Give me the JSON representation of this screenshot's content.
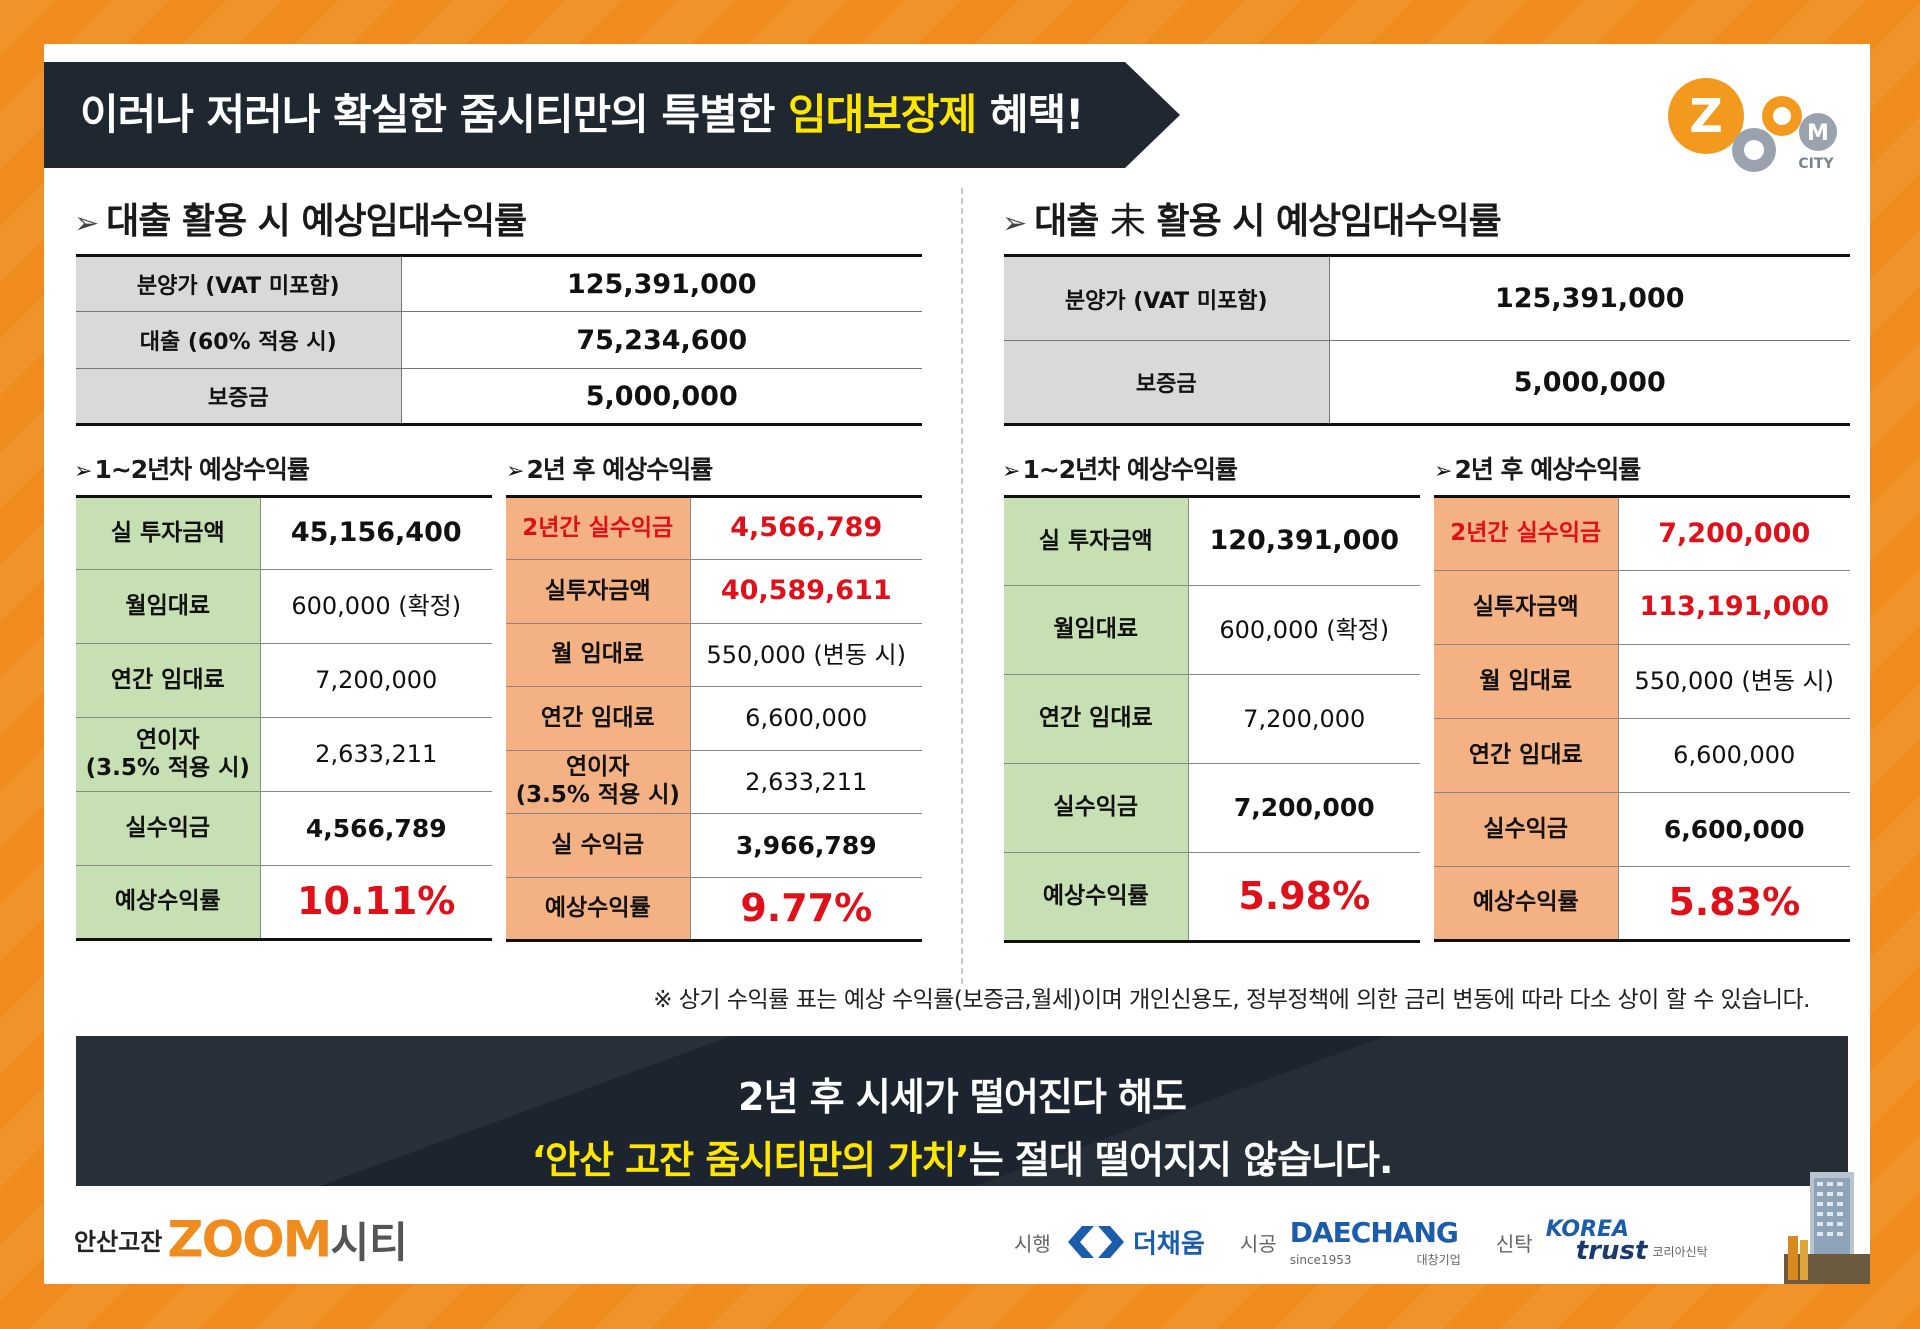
{
  "header": {
    "title_prefix": "이러나 저러나 확실한 줌시티만의 특별한 ",
    "title_highlight": "임대보장제",
    "title_suffix": " 혜택!",
    "logo_letters": [
      "Z",
      "O",
      "O",
      "M"
    ],
    "logo_city": "CITY"
  },
  "colors": {
    "accent_orange": "#f08c1e",
    "highlight_yellow": "#ffe600",
    "value_red": "#e0101a",
    "label_green": "#c6e0b4",
    "label_orange": "#f4b183"
  },
  "left": {
    "title_arrow": "➢",
    "title_main": "대출 활용 시 예상임대수익률",
    "summary": [
      {
        "label": "분양가 (VAT 미포함)",
        "value": "125,391,000"
      },
      {
        "label": "대출 (60% 적용 시)",
        "value": "75,234,600"
      },
      {
        "label": "보증금",
        "value": "5,000,000"
      }
    ],
    "period1": {
      "title": "1~2년차 예상수익률",
      "rows": [
        {
          "label": "실 투자금액",
          "value": "45,156,400"
        },
        {
          "label": "월임대료",
          "value": "600,000 (확정)"
        },
        {
          "label": "연간 임대료",
          "value": "7,200,000"
        },
        {
          "label_1": "연이자",
          "label_2": "(3.5% 적용 시)",
          "value": "2,633,211"
        },
        {
          "label": "실수익금",
          "value": "4,566,789"
        },
        {
          "label": "예상수익률",
          "value": "10.11%"
        }
      ]
    },
    "period2": {
      "title": "2년 후 예상수익률",
      "rows": [
        {
          "label": "2년간 실수익금",
          "value": "4,566,789"
        },
        {
          "label": "실투자금액",
          "value": "40,589,611"
        },
        {
          "label": "월 임대료",
          "value": "550,000 (변동 시)"
        },
        {
          "label": "연간 임대료",
          "value": "6,600,000"
        },
        {
          "label_1": "연이자",
          "label_2": "(3.5% 적용 시)",
          "value": "2,633,211"
        },
        {
          "label": "실 수익금",
          "value": "3,966,789"
        },
        {
          "label": "예상수익률",
          "value": "9.77%"
        }
      ]
    }
  },
  "right": {
    "title_arrow": "➢",
    "title_part1": "대출 ",
    "title_mid": "未",
    "title_part2": " 활용 시 예상임대수익률",
    "summary": [
      {
        "label": "분양가 (VAT 미포함)",
        "value": "125,391,000"
      },
      {
        "label": "보증금",
        "value": "5,000,000"
      }
    ],
    "period1": {
      "title": "1~2년차 예상수익률",
      "rows": [
        {
          "label": "실 투자금액",
          "value": "120,391,000"
        },
        {
          "label": "월임대료",
          "value": "600,000 (확정)"
        },
        {
          "label": "연간 임대료",
          "value": "7,200,000"
        },
        {
          "label": "실수익금",
          "value": "7,200,000"
        },
        {
          "label": "예상수익률",
          "value": "5.98%"
        }
      ]
    },
    "period2": {
      "title": "2년 후 예상수익률",
      "rows": [
        {
          "label": "2년간 실수익금",
          "value": "7,200,000"
        },
        {
          "label": "실투자금액",
          "value": "113,191,000"
        },
        {
          "label": "월 임대료",
          "value": "550,000 (변동 시)"
        },
        {
          "label": "연간 임대료",
          "value": "6,600,000"
        },
        {
          "label": "실수익금",
          "value": "6,600,000"
        },
        {
          "label": "예상수익률",
          "value": "5.83%"
        }
      ]
    }
  },
  "note": "※ 상기 수익률 표는 예상 수익률(보증금,월세)이며 개인신용도, 정부정책에 의한 금리 변동에 따라 다소 상이 할 수 있습니다.",
  "bottom": {
    "line1": "2년 후 시세가 떨어진다 해도",
    "line2_highlight": "‘안산 고잔 줌시티만의 가치’",
    "line2_rest": "는 절대 떨어지지 않습니다."
  },
  "footer": {
    "prefix": "안산고잔",
    "brand": "ZOOM",
    "suffix": "시티",
    "partners": [
      {
        "role": "시행",
        "name": "더채움"
      },
      {
        "role": "시공",
        "name": "DAECHANG",
        "sub1": "since1953",
        "sub2": "대창기업"
      },
      {
        "role": "신탁",
        "name_1": "KOREA",
        "name_2": "trust",
        "sub": "코리아신탁"
      }
    ]
  }
}
